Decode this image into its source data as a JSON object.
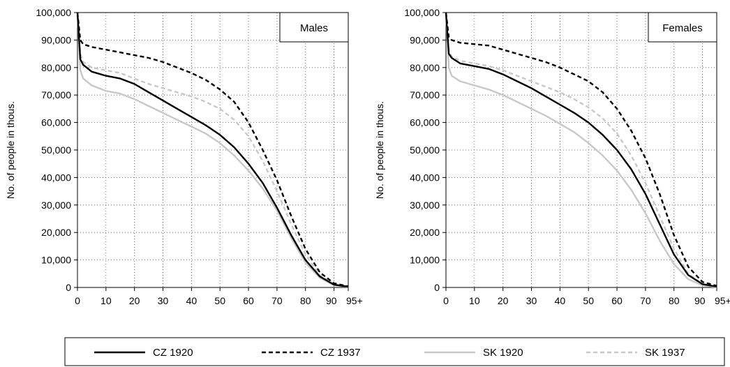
{
  "legend": {
    "entries": [
      {
        "label": "CZ 1920",
        "color": "#000000",
        "style": "solid"
      },
      {
        "label": "CZ 1937",
        "color": "#000000",
        "style": "dashed"
      },
      {
        "label": "SK 1920",
        "color": "#c8c8c8",
        "style": "solid"
      },
      {
        "label": "SK 1937",
        "color": "#c8c8c8",
        "style": "dashed"
      }
    ],
    "placement": "bottom"
  },
  "chart_data": [
    {
      "type": "line",
      "panel_label": "Males",
      "ylabel": "No. of people in thous.",
      "xlabel": "",
      "xlim": [
        0,
        95
      ],
      "ylim": [
        0,
        100000
      ],
      "x_ticks": [
        "0",
        "10",
        "20",
        "30",
        "40",
        "50",
        "60",
        "70",
        "80",
        "90",
        "95+"
      ],
      "y_ticks": [
        "0",
        "10,000",
        "20,000",
        "30,000",
        "40,000",
        "50,000",
        "60,000",
        "70,000",
        "80,000",
        "90,000",
        "100,000"
      ],
      "grid": true,
      "legend_box": "top-right",
      "x": [
        0,
        1,
        2,
        5,
        10,
        15,
        20,
        25,
        30,
        35,
        40,
        45,
        50,
        55,
        60,
        65,
        70,
        75,
        80,
        85,
        90,
        95
      ],
      "series": [
        {
          "name": "CZ 1920",
          "values": [
            100000,
            83000,
            81000,
            78500,
            77000,
            76000,
            74000,
            71000,
            68000,
            65000,
            62000,
            59000,
            55500,
            51000,
            45000,
            38000,
            29000,
            19000,
            10000,
            4000,
            1000,
            300
          ]
        },
        {
          "name": "CZ 1937",
          "values": [
            100000,
            90000,
            88500,
            87500,
            86500,
            85500,
            84500,
            83500,
            82000,
            80000,
            78000,
            75500,
            72000,
            67500,
            60000,
            50000,
            39000,
            26000,
            14000,
            5500,
            1500,
            400
          ]
        },
        {
          "name": "SK 1920",
          "values": [
            100000,
            79000,
            76000,
            73500,
            71500,
            70500,
            68500,
            66000,
            63500,
            61000,
            58500,
            56000,
            52500,
            48000,
            42500,
            36000,
            28000,
            18000,
            9000,
            3500,
            800,
            200
          ]
        },
        {
          "name": "SK 1937",
          "values": [
            100000,
            85000,
            82000,
            80000,
            79000,
            78000,
            76000,
            74000,
            72500,
            71000,
            69500,
            67500,
            65000,
            61000,
            55000,
            46000,
            35000,
            23000,
            12000,
            4500,
            1200,
            300
          ]
        }
      ]
    },
    {
      "type": "line",
      "panel_label": "Females",
      "ylabel": "No. of people in thous.",
      "xlabel": "",
      "xlim": [
        0,
        95
      ],
      "ylim": [
        0,
        100000
      ],
      "x_ticks": [
        "0",
        "10",
        "20",
        "30",
        "40",
        "50",
        "60",
        "70",
        "80",
        "90",
        "95+"
      ],
      "y_ticks": [
        "0",
        "10,000",
        "20,000",
        "30,000",
        "40,000",
        "50,000",
        "60,000",
        "70,000",
        "80,000",
        "90,000",
        "100,000"
      ],
      "grid": true,
      "legend_box": "top-right",
      "x": [
        0,
        1,
        2,
        5,
        10,
        15,
        20,
        25,
        30,
        35,
        40,
        45,
        50,
        55,
        60,
        65,
        70,
        75,
        80,
        85,
        90,
        95
      ],
      "series": [
        {
          "name": "CZ 1920",
          "values": [
            100000,
            85000,
            83500,
            81500,
            80500,
            79500,
            77500,
            75000,
            72500,
            69500,
            66500,
            63500,
            60000,
            55500,
            50000,
            43000,
            34000,
            23000,
            12000,
            4500,
            1200,
            300
          ]
        },
        {
          "name": "CZ 1937",
          "values": [
            100000,
            91000,
            90000,
            89000,
            88500,
            88000,
            86500,
            85000,
            83500,
            82000,
            80000,
            77500,
            75000,
            71000,
            65000,
            57000,
            47000,
            34000,
            19000,
            7500,
            2000,
            600
          ]
        },
        {
          "name": "SK 1920",
          "values": [
            100000,
            80000,
            77000,
            75000,
            73500,
            72000,
            70000,
            67500,
            65000,
            62500,
            59500,
            56500,
            52500,
            48000,
            42500,
            35500,
            27000,
            17000,
            8500,
            3000,
            700,
            150
          ]
        },
        {
          "name": "SK 1937",
          "values": [
            100000,
            86000,
            84000,
            82500,
            81500,
            80500,
            79000,
            77000,
            75000,
            73000,
            71000,
            68500,
            65500,
            61500,
            56000,
            48000,
            38000,
            26000,
            14000,
            5000,
            1200,
            300
          ]
        }
      ]
    }
  ]
}
